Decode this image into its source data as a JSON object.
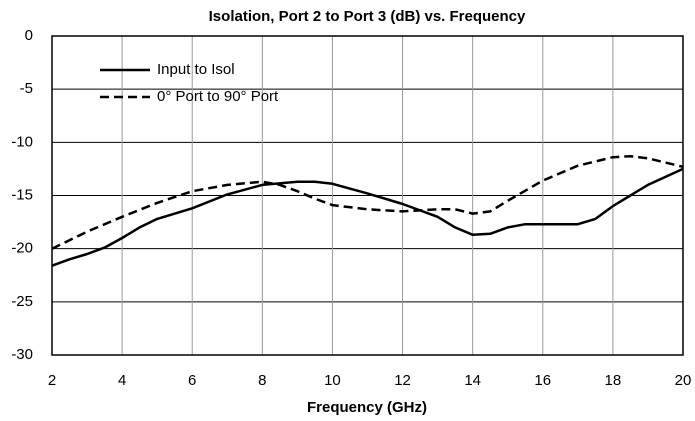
{
  "chart_data": {
    "type": "line",
    "title": "Isolation, Port 2 to Port 3 (dB) vs. Frequency",
    "x_label": "Frequency (GHz)",
    "series": [
      {
        "name": "Input to Isol",
        "color": "#000000",
        "dash": false,
        "x": [
          2,
          2.5,
          3,
          3.5,
          4,
          4.5,
          5,
          6,
          7,
          8,
          9,
          9.5,
          10,
          11,
          12,
          13,
          13.5,
          14,
          14.5,
          15,
          15.5,
          16,
          17,
          17.5,
          18,
          19,
          20
        ],
        "values": [
          -21.6,
          -21.0,
          -20.5,
          -19.9,
          -19.0,
          -18.0,
          -17.2,
          -16.2,
          -14.9,
          -14.0,
          -13.7,
          -13.7,
          -13.9,
          -14.8,
          -15.8,
          -17.0,
          -18.0,
          -18.7,
          -18.6,
          -18.0,
          -17.7,
          -17.7,
          -17.7,
          -17.2,
          -16.0,
          -14.0,
          -12.5
        ]
      },
      {
        "name": "0° Port to 90° Port",
        "color": "#000000",
        "dash": true,
        "x": [
          2,
          3,
          4,
          5,
          6,
          7,
          8,
          8.5,
          9,
          9.5,
          10,
          11,
          12,
          13,
          13.5,
          14,
          14.5,
          15,
          16,
          17,
          18,
          18.5,
          19,
          20
        ],
        "values": [
          -20.0,
          -18.4,
          -17.0,
          -15.7,
          -14.6,
          -14.0,
          -13.7,
          -14.0,
          -14.6,
          -15.3,
          -15.9,
          -16.3,
          -16.5,
          -16.3,
          -16.3,
          -16.7,
          -16.5,
          -15.5,
          -13.6,
          -12.2,
          -11.4,
          -11.3,
          -11.5,
          -12.3
        ]
      }
    ],
    "xlim": [
      2,
      20
    ],
    "xticks": [
      2,
      4,
      6,
      8,
      10,
      12,
      14,
      16,
      18,
      20
    ],
    "ylim": [
      -30,
      0
    ],
    "yticks": [
      0,
      -5,
      -10,
      -15,
      -20,
      -25,
      -30
    ],
    "grid": true,
    "legend": "upper-left"
  }
}
